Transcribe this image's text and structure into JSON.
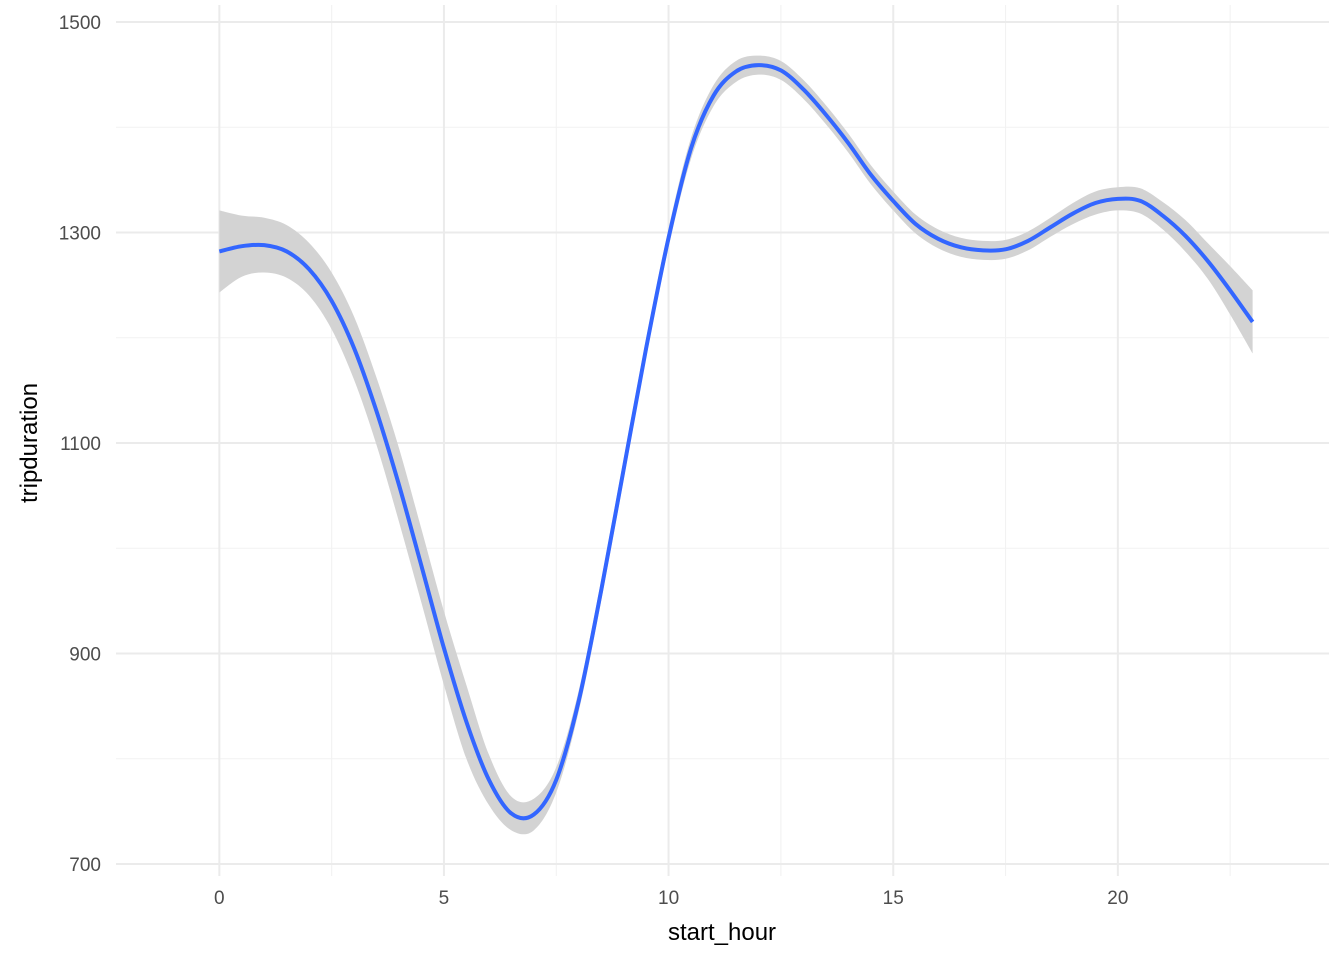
{
  "chart_data": {
    "type": "line",
    "title": "",
    "xlabel": "start_hour",
    "ylabel": "tripduration",
    "xlim": [
      -2.3,
      24.7
    ],
    "ylim": [
      700,
      1500
    ],
    "x_ticks": [
      0,
      5,
      10,
      15,
      20
    ],
    "x_tick_labels": [
      "0",
      "5",
      "10",
      "15",
      "20"
    ],
    "x_minor_ticks": [
      2.5,
      7.5,
      12.5,
      17.5,
      22.5
    ],
    "y_ticks": [
      700,
      900,
      1100,
      1300,
      1500
    ],
    "y_tick_labels": [
      "700",
      "900",
      "1100",
      "1300",
      "1500"
    ],
    "y_minor_ticks": [
      800,
      1000,
      1200,
      1400
    ],
    "grid": true,
    "series": [
      {
        "color": "#3366ff",
        "band_color": "#d3d3d3",
        "x": [
          0,
          0.5,
          1,
          1.5,
          2,
          2.5,
          3,
          3.5,
          4,
          4.5,
          5,
          5.5,
          6,
          6.5,
          7,
          7.5,
          8,
          8.5,
          9,
          9.5,
          10,
          10.5,
          11,
          11.5,
          12,
          12.5,
          13,
          13.5,
          14,
          14.5,
          15,
          15.5,
          16,
          16.5,
          17,
          17.5,
          18,
          18.5,
          19,
          19.5,
          20,
          20.5,
          21,
          21.5,
          22,
          22.5,
          23
        ],
        "y": [
          1282,
          1287,
          1288,
          1282,
          1265,
          1235,
          1190,
          1130,
          1060,
          983,
          905,
          835,
          780,
          748,
          747,
          780,
          855,
          960,
          1075,
          1190,
          1295,
          1380,
          1430,
          1453,
          1459,
          1454,
          1436,
          1412,
          1385,
          1355,
          1330,
          1308,
          1294,
          1286,
          1283,
          1284,
          1292,
          1305,
          1318,
          1328,
          1332,
          1330,
          1316,
          1297,
          1273,
          1245,
          1215
        ],
        "lower": [
          1243,
          1258,
          1262,
          1257,
          1240,
          1208,
          1160,
          1098,
          1025,
          948,
          870,
          800,
          756,
          732,
          732,
          768,
          845,
          950,
          1065,
          1181,
          1286,
          1370,
          1420,
          1443,
          1450,
          1445,
          1427,
          1403,
          1376,
          1346,
          1321,
          1299,
          1285,
          1277,
          1274,
          1275,
          1283,
          1296,
          1308,
          1317,
          1321,
          1318,
          1303,
          1282,
          1256,
          1222,
          1185
        ],
        "upper": [
          1321,
          1316,
          1314,
          1307,
          1290,
          1262,
          1220,
          1162,
          1095,
          1018,
          940,
          870,
          804,
          764,
          762,
          792,
          865,
          970,
          1085,
          1199,
          1304,
          1390,
          1440,
          1463,
          1468,
          1463,
          1445,
          1421,
          1394,
          1364,
          1339,
          1317,
          1303,
          1295,
          1292,
          1293,
          1301,
          1314,
          1328,
          1339,
          1343,
          1342,
          1329,
          1312,
          1290,
          1268,
          1245
        ]
      }
    ]
  }
}
